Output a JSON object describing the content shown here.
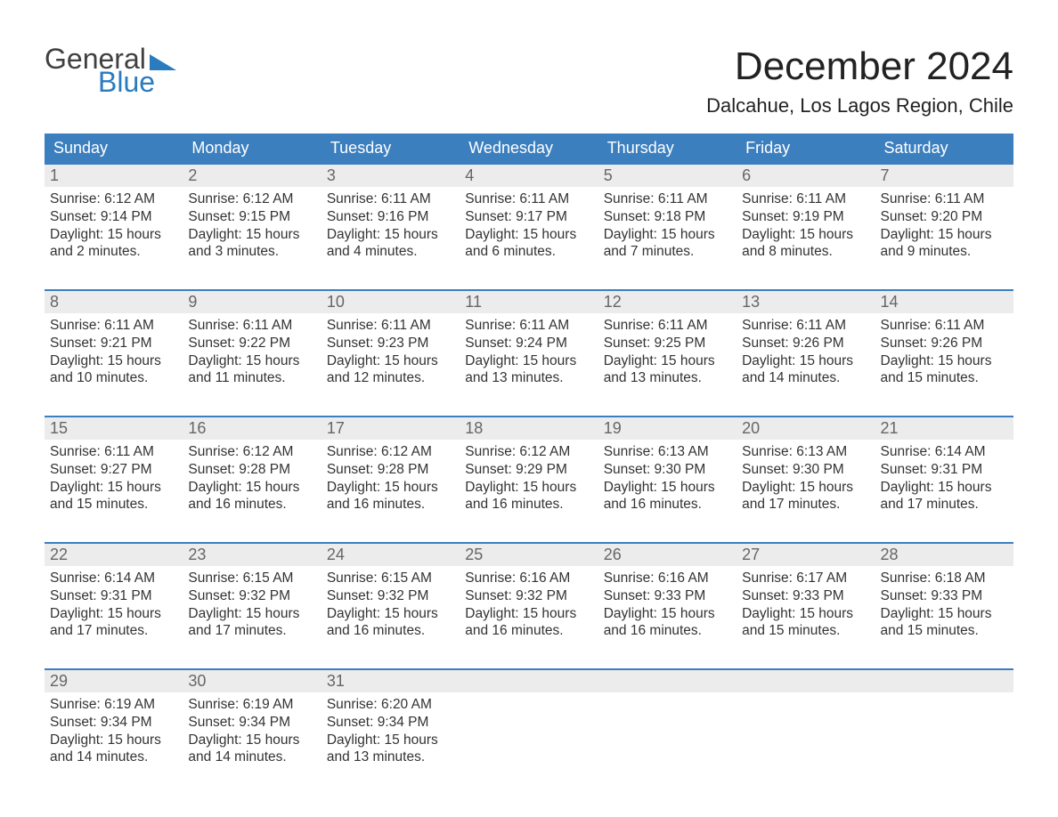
{
  "logo": {
    "text1": "General",
    "text2": "Blue"
  },
  "title": "December 2024",
  "location": "Dalcahue, Los Lagos Region, Chile",
  "colors": {
    "header_bg": "#3c7fbf",
    "daynum_bg": "#ececec",
    "week_border": "#3c7fbf",
    "logo_accent": "#2b7bbf",
    "text": "#333333",
    "background": "#ffffff"
  },
  "day_names": [
    "Sunday",
    "Monday",
    "Tuesday",
    "Wednesday",
    "Thursday",
    "Friday",
    "Saturday"
  ],
  "weeks": [
    [
      {
        "n": "1",
        "sunrise": "Sunrise: 6:12 AM",
        "sunset": "Sunset: 9:14 PM",
        "d1": "Daylight: 15 hours",
        "d2": "and 2 minutes."
      },
      {
        "n": "2",
        "sunrise": "Sunrise: 6:12 AM",
        "sunset": "Sunset: 9:15 PM",
        "d1": "Daylight: 15 hours",
        "d2": "and 3 minutes."
      },
      {
        "n": "3",
        "sunrise": "Sunrise: 6:11 AM",
        "sunset": "Sunset: 9:16 PM",
        "d1": "Daylight: 15 hours",
        "d2": "and 4 minutes."
      },
      {
        "n": "4",
        "sunrise": "Sunrise: 6:11 AM",
        "sunset": "Sunset: 9:17 PM",
        "d1": "Daylight: 15 hours",
        "d2": "and 6 minutes."
      },
      {
        "n": "5",
        "sunrise": "Sunrise: 6:11 AM",
        "sunset": "Sunset: 9:18 PM",
        "d1": "Daylight: 15 hours",
        "d2": "and 7 minutes."
      },
      {
        "n": "6",
        "sunrise": "Sunrise: 6:11 AM",
        "sunset": "Sunset: 9:19 PM",
        "d1": "Daylight: 15 hours",
        "d2": "and 8 minutes."
      },
      {
        "n": "7",
        "sunrise": "Sunrise: 6:11 AM",
        "sunset": "Sunset: 9:20 PM",
        "d1": "Daylight: 15 hours",
        "d2": "and 9 minutes."
      }
    ],
    [
      {
        "n": "8",
        "sunrise": "Sunrise: 6:11 AM",
        "sunset": "Sunset: 9:21 PM",
        "d1": "Daylight: 15 hours",
        "d2": "and 10 minutes."
      },
      {
        "n": "9",
        "sunrise": "Sunrise: 6:11 AM",
        "sunset": "Sunset: 9:22 PM",
        "d1": "Daylight: 15 hours",
        "d2": "and 11 minutes."
      },
      {
        "n": "10",
        "sunrise": "Sunrise: 6:11 AM",
        "sunset": "Sunset: 9:23 PM",
        "d1": "Daylight: 15 hours",
        "d2": "and 12 minutes."
      },
      {
        "n": "11",
        "sunrise": "Sunrise: 6:11 AM",
        "sunset": "Sunset: 9:24 PM",
        "d1": "Daylight: 15 hours",
        "d2": "and 13 minutes."
      },
      {
        "n": "12",
        "sunrise": "Sunrise: 6:11 AM",
        "sunset": "Sunset: 9:25 PM",
        "d1": "Daylight: 15 hours",
        "d2": "and 13 minutes."
      },
      {
        "n": "13",
        "sunrise": "Sunrise: 6:11 AM",
        "sunset": "Sunset: 9:26 PM",
        "d1": "Daylight: 15 hours",
        "d2": "and 14 minutes."
      },
      {
        "n": "14",
        "sunrise": "Sunrise: 6:11 AM",
        "sunset": "Sunset: 9:26 PM",
        "d1": "Daylight: 15 hours",
        "d2": "and 15 minutes."
      }
    ],
    [
      {
        "n": "15",
        "sunrise": "Sunrise: 6:11 AM",
        "sunset": "Sunset: 9:27 PM",
        "d1": "Daylight: 15 hours",
        "d2": "and 15 minutes."
      },
      {
        "n": "16",
        "sunrise": "Sunrise: 6:12 AM",
        "sunset": "Sunset: 9:28 PM",
        "d1": "Daylight: 15 hours",
        "d2": "and 16 minutes."
      },
      {
        "n": "17",
        "sunrise": "Sunrise: 6:12 AM",
        "sunset": "Sunset: 9:28 PM",
        "d1": "Daylight: 15 hours",
        "d2": "and 16 minutes."
      },
      {
        "n": "18",
        "sunrise": "Sunrise: 6:12 AM",
        "sunset": "Sunset: 9:29 PM",
        "d1": "Daylight: 15 hours",
        "d2": "and 16 minutes."
      },
      {
        "n": "19",
        "sunrise": "Sunrise: 6:13 AM",
        "sunset": "Sunset: 9:30 PM",
        "d1": "Daylight: 15 hours",
        "d2": "and 16 minutes."
      },
      {
        "n": "20",
        "sunrise": "Sunrise: 6:13 AM",
        "sunset": "Sunset: 9:30 PM",
        "d1": "Daylight: 15 hours",
        "d2": "and 17 minutes."
      },
      {
        "n": "21",
        "sunrise": "Sunrise: 6:14 AM",
        "sunset": "Sunset: 9:31 PM",
        "d1": "Daylight: 15 hours",
        "d2": "and 17 minutes."
      }
    ],
    [
      {
        "n": "22",
        "sunrise": "Sunrise: 6:14 AM",
        "sunset": "Sunset: 9:31 PM",
        "d1": "Daylight: 15 hours",
        "d2": "and 17 minutes."
      },
      {
        "n": "23",
        "sunrise": "Sunrise: 6:15 AM",
        "sunset": "Sunset: 9:32 PM",
        "d1": "Daylight: 15 hours",
        "d2": "and 17 minutes."
      },
      {
        "n": "24",
        "sunrise": "Sunrise: 6:15 AM",
        "sunset": "Sunset: 9:32 PM",
        "d1": "Daylight: 15 hours",
        "d2": "and 16 minutes."
      },
      {
        "n": "25",
        "sunrise": "Sunrise: 6:16 AM",
        "sunset": "Sunset: 9:32 PM",
        "d1": "Daylight: 15 hours",
        "d2": "and 16 minutes."
      },
      {
        "n": "26",
        "sunrise": "Sunrise: 6:16 AM",
        "sunset": "Sunset: 9:33 PM",
        "d1": "Daylight: 15 hours",
        "d2": "and 16 minutes."
      },
      {
        "n": "27",
        "sunrise": "Sunrise: 6:17 AM",
        "sunset": "Sunset: 9:33 PM",
        "d1": "Daylight: 15 hours",
        "d2": "and 15 minutes."
      },
      {
        "n": "28",
        "sunrise": "Sunrise: 6:18 AM",
        "sunset": "Sunset: 9:33 PM",
        "d1": "Daylight: 15 hours",
        "d2": "and 15 minutes."
      }
    ],
    [
      {
        "n": "29",
        "sunrise": "Sunrise: 6:19 AM",
        "sunset": "Sunset: 9:34 PM",
        "d1": "Daylight: 15 hours",
        "d2": "and 14 minutes."
      },
      {
        "n": "30",
        "sunrise": "Sunrise: 6:19 AM",
        "sunset": "Sunset: 9:34 PM",
        "d1": "Daylight: 15 hours",
        "d2": "and 14 minutes."
      },
      {
        "n": "31",
        "sunrise": "Sunrise: 6:20 AM",
        "sunset": "Sunset: 9:34 PM",
        "d1": "Daylight: 15 hours",
        "d2": "and 13 minutes."
      },
      {
        "empty": true
      },
      {
        "empty": true
      },
      {
        "empty": true
      },
      {
        "empty": true
      }
    ]
  ]
}
